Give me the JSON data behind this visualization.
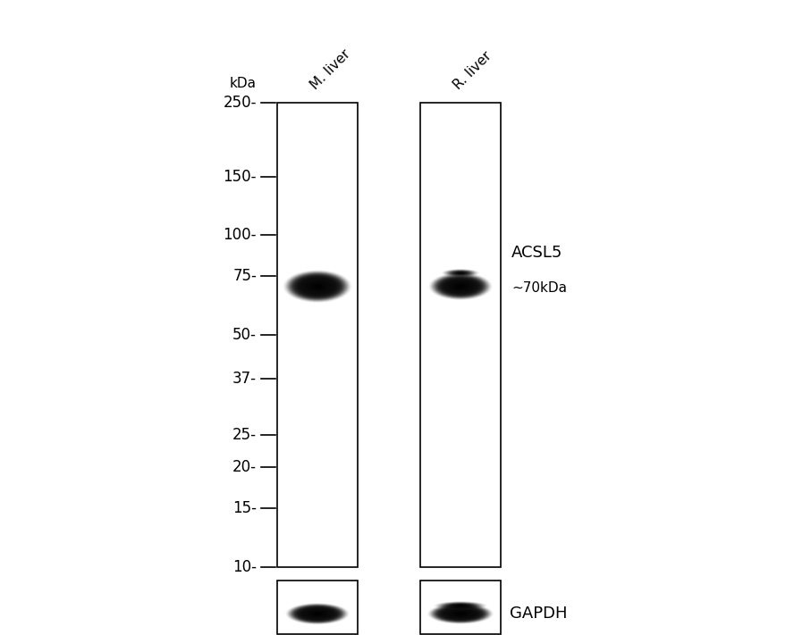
{
  "background_color": "#ffffff",
  "ladder_labels": [
    "250",
    "150",
    "100",
    "75",
    "50",
    "37",
    "25",
    "20",
    "15",
    "10"
  ],
  "ladder_kda": [
    250,
    150,
    100,
    75,
    50,
    37,
    25,
    20,
    15,
    10
  ],
  "kda_label": "kDa",
  "lane_labels": [
    "M. liver",
    "R. liver"
  ],
  "band_annotation": "ACSL5",
  "band_size_label": "~70kDa",
  "gapdh_label": "GAPDH",
  "text_color": "#000000",
  "lane_border": "#000000",
  "font_size_ladder": 12,
  "font_size_lane_label": 11,
  "font_size_annotation": 13,
  "font_size_kda_header": 11,
  "fig_width": 8.88,
  "fig_height": 7.11,
  "dpi": 100
}
